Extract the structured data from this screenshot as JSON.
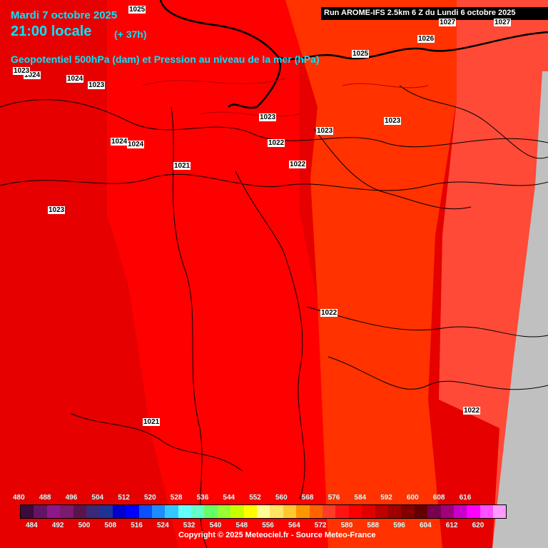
{
  "header": {
    "date": "Mardi 7 octobre 2025",
    "time": "21:00 locale",
    "lead": "(+ 37h)",
    "field": "Geopotentiel 500hPa (dam) et Pression au niveau de la mer (hPa)",
    "run": "Run AROME-IFS 2.5km 6 Z du Lundi 6 octobre 2025"
  },
  "pressure_labels": [
    "1025",
    "1024",
    "1023",
    "1024",
    "1024",
    "1024",
    "1021",
    "1023",
    "1023",
    "1023",
    "1022",
    "1022",
    "1023",
    "1025",
    "1026",
    "1027",
    "1027",
    "1022",
    "1021",
    "1022",
    "1023"
  ],
  "legend": {
    "top_ticks": [
      "480",
      "488",
      "496",
      "504",
      "512",
      "520",
      "528",
      "536",
      "544",
      "552",
      "560",
      "568",
      "576",
      "584",
      "592",
      "600",
      "608",
      "616"
    ],
    "bottom_ticks": [
      "484",
      "492",
      "500",
      "508",
      "516",
      "524",
      "532",
      "540",
      "548",
      "556",
      "564",
      "572",
      "580",
      "588",
      "596",
      "604",
      "612",
      "620"
    ],
    "colors": [
      "#3c0a3c",
      "#641464",
      "#8c198c",
      "#7d196e",
      "#5a144b",
      "#3c2878",
      "#1e3296",
      "#0000cd",
      "#0000ff",
      "#0a50ff",
      "#1e8cff",
      "#32c8ff",
      "#64ffff",
      "#64ffc8",
      "#64ff64",
      "#96ff32",
      "#c8ff00",
      "#ffff00",
      "#ffff96",
      "#ffe664",
      "#ffc832",
      "#ff9600",
      "#ff6400",
      "#ff3c28",
      "#ff1414",
      "#ff0000",
      "#e10000",
      "#be0000",
      "#a00000",
      "#820000",
      "#640000",
      "#780050",
      "#a0007d",
      "#c800c8",
      "#ff00ff",
      "#ff50ff",
      "#ff9bff"
    ]
  },
  "copyright": "Copyright © 2025 Meteociel.fr - Source Meteo-France"
}
